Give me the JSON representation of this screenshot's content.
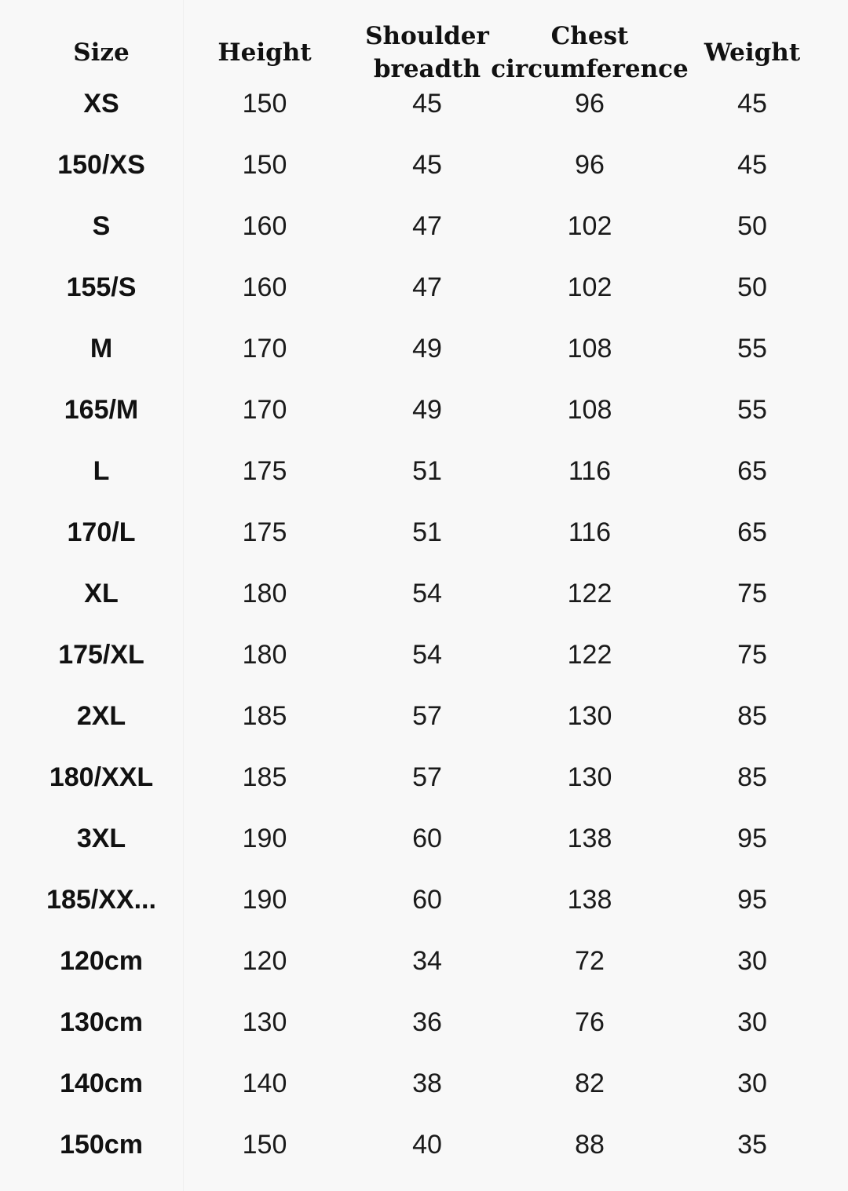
{
  "headers": [
    "Size",
    "Height",
    "Shoulder breadth",
    "Chest circumference",
    "Weight"
  ],
  "header_lines": [
    [
      "Size"
    ],
    [
      "Height"
    ],
    [
      "Shoulder",
      "breadth"
    ],
    [
      "Chest",
      "circumference"
    ],
    [
      "Weight"
    ]
  ],
  "rows": [
    [
      "XS",
      "150",
      "45",
      "96",
      "45"
    ],
    [
      "150/XS",
      "150",
      "45",
      "96",
      "45"
    ],
    [
      "S",
      "160",
      "47",
      "102",
      "50"
    ],
    [
      "155/S",
      "160",
      "47",
      "102",
      "50"
    ],
    [
      "M",
      "170",
      "49",
      "108",
      "55"
    ],
    [
      "165/M",
      "170",
      "49",
      "108",
      "55"
    ],
    [
      "L",
      "175",
      "51",
      "116",
      "65"
    ],
    [
      "170/L",
      "175",
      "51",
      "116",
      "65"
    ],
    [
      "XL",
      "180",
      "54",
      "122",
      "75"
    ],
    [
      "175/XL",
      "180",
      "54",
      "122",
      "75"
    ],
    [
      "2XL",
      "185",
      "57",
      "130",
      "85"
    ],
    [
      "180/XXL",
      "185",
      "57",
      "130",
      "85"
    ],
    [
      "3XL",
      "190",
      "60",
      "138",
      "95"
    ],
    [
      "185/XX...",
      "190",
      "60",
      "138",
      "95"
    ],
    [
      "120cm",
      "120",
      "34",
      "72",
      "30"
    ],
    [
      "130cm",
      "130",
      "36",
      "76",
      "30"
    ],
    [
      "140cm",
      "140",
      "38",
      "82",
      "30"
    ],
    [
      "150cm",
      "150",
      "40",
      "88",
      "35"
    ]
  ]
}
